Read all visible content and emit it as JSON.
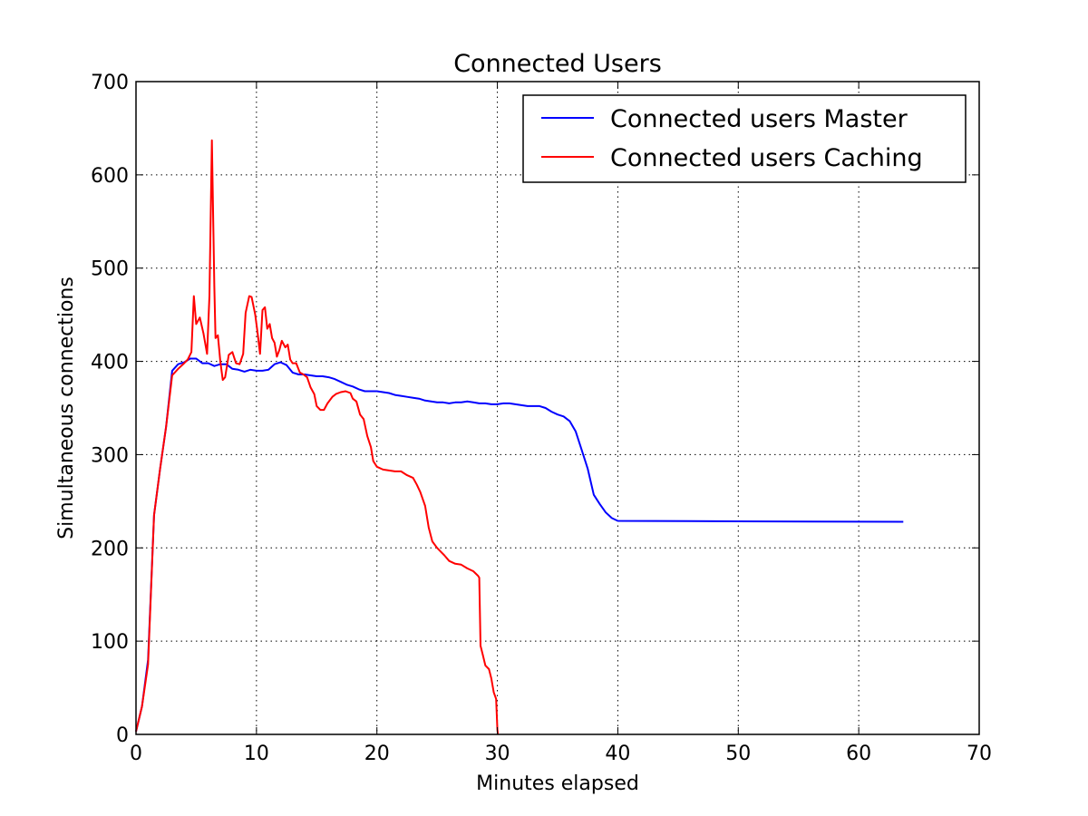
{
  "chart_data": {
    "type": "line",
    "title": "Connected Users",
    "xlabel": "Minutes elapsed",
    "ylabel": "Simultaneous connections",
    "xlim": [
      0,
      70
    ],
    "ylim": [
      0,
      700
    ],
    "xticks": [
      0,
      10,
      20,
      30,
      40,
      50,
      60,
      70
    ],
    "yticks": [
      0,
      100,
      200,
      300,
      400,
      500,
      600,
      700
    ],
    "xtick_labels": [
      "0",
      "10",
      "20",
      "30",
      "40",
      "50",
      "60",
      "70"
    ],
    "ytick_labels": [
      "0",
      "100",
      "200",
      "300",
      "400",
      "500",
      "600",
      "700"
    ],
    "grid": true,
    "grid_style": "dotted",
    "legend_position": "upper right",
    "series": [
      {
        "name": "Connected users Master",
        "color": "#0000ff",
        "points": [
          [
            0,
            3
          ],
          [
            0.5,
            30
          ],
          [
            1,
            80
          ],
          [
            1.5,
            235
          ],
          [
            2,
            285
          ],
          [
            2.5,
            330
          ],
          [
            3,
            390
          ],
          [
            3.5,
            397
          ],
          [
            4,
            399
          ],
          [
            4.5,
            403
          ],
          [
            5,
            403
          ],
          [
            5.5,
            398
          ],
          [
            6,
            398
          ],
          [
            6.5,
            395
          ],
          [
            7,
            397
          ],
          [
            7.5,
            397
          ],
          [
            8,
            392
          ],
          [
            8.5,
            391
          ],
          [
            9,
            389
          ],
          [
            9.5,
            391
          ],
          [
            10,
            390
          ],
          [
            10.5,
            390
          ],
          [
            11,
            391
          ],
          [
            11.5,
            397
          ],
          [
            12,
            399
          ],
          [
            12.5,
            396
          ],
          [
            13,
            388
          ],
          [
            13.5,
            386
          ],
          [
            14,
            386
          ],
          [
            14.5,
            385
          ],
          [
            15,
            384
          ],
          [
            15.5,
            384
          ],
          [
            16,
            383
          ],
          [
            16.5,
            381
          ],
          [
            17,
            378
          ],
          [
            17.5,
            375
          ],
          [
            18,
            373
          ],
          [
            18.5,
            370
          ],
          [
            19,
            368
          ],
          [
            19.5,
            368
          ],
          [
            20,
            368
          ],
          [
            20.5,
            367
          ],
          [
            21,
            366
          ],
          [
            21.5,
            364
          ],
          [
            22,
            363
          ],
          [
            22.5,
            362
          ],
          [
            23,
            361
          ],
          [
            23.5,
            360
          ],
          [
            24,
            358
          ],
          [
            24.5,
            357
          ],
          [
            25,
            356
          ],
          [
            25.5,
            356
          ],
          [
            26,
            355
          ],
          [
            26.5,
            356
          ],
          [
            27,
            356
          ],
          [
            27.5,
            357
          ],
          [
            28,
            356
          ],
          [
            28.5,
            355
          ],
          [
            29,
            355
          ],
          [
            29.5,
            354
          ],
          [
            30,
            354
          ],
          [
            30.5,
            355
          ],
          [
            31,
            355
          ],
          [
            31.5,
            354
          ],
          [
            32,
            353
          ],
          [
            32.5,
            352
          ],
          [
            33,
            352
          ],
          [
            33.5,
            352
          ],
          [
            34,
            350
          ],
          [
            34.5,
            346
          ],
          [
            35,
            343
          ],
          [
            35.5,
            341
          ],
          [
            36,
            336
          ],
          [
            36.5,
            325
          ],
          [
            37,
            305
          ],
          [
            37.5,
            285
          ],
          [
            38,
            257
          ],
          [
            38.5,
            247
          ],
          [
            39,
            238
          ],
          [
            39.5,
            232
          ],
          [
            40,
            229
          ],
          [
            50,
            228.5
          ],
          [
            63.7,
            228
          ]
        ]
      },
      {
        "name": "Connected users Caching",
        "color": "#ff0000",
        "points": [
          [
            0,
            3
          ],
          [
            0.5,
            30
          ],
          [
            1,
            75
          ],
          [
            1.5,
            235
          ],
          [
            2,
            285
          ],
          [
            2.5,
            330
          ],
          [
            3,
            385
          ],
          [
            3.5,
            392
          ],
          [
            4,
            398
          ],
          [
            4.3,
            402
          ],
          [
            4.6,
            410
          ],
          [
            4.8,
            470
          ],
          [
            5,
            440
          ],
          [
            5.3,
            447
          ],
          [
            5.6,
            430
          ],
          [
            5.9,
            408
          ],
          [
            6.1,
            470
          ],
          [
            6.3,
            637
          ],
          [
            6.5,
            480
          ],
          [
            6.6,
            425
          ],
          [
            6.8,
            428
          ],
          [
            7.0,
            400
          ],
          [
            7.2,
            380
          ],
          [
            7.4,
            383
          ],
          [
            7.7,
            407
          ],
          [
            8,
            410
          ],
          [
            8.3,
            398
          ],
          [
            8.6,
            397
          ],
          [
            8.9,
            408
          ],
          [
            9.1,
            452
          ],
          [
            9.4,
            470
          ],
          [
            9.6,
            469
          ],
          [
            9.9,
            450
          ],
          [
            10.1,
            430
          ],
          [
            10.3,
            408
          ],
          [
            10.5,
            455
          ],
          [
            10.7,
            458
          ],
          [
            10.9,
            435
          ],
          [
            11.1,
            440
          ],
          [
            11.3,
            425
          ],
          [
            11.5,
            420
          ],
          [
            11.7,
            405
          ],
          [
            11.9,
            412
          ],
          [
            12.1,
            422
          ],
          [
            12.4,
            415
          ],
          [
            12.6,
            418
          ],
          [
            12.8,
            402
          ],
          [
            13.0,
            398
          ],
          [
            13.3,
            398
          ],
          [
            13.6,
            388
          ],
          [
            13.9,
            386
          ],
          [
            14.2,
            383
          ],
          [
            14.5,
            372
          ],
          [
            14.8,
            365
          ],
          [
            15,
            352
          ],
          [
            15.3,
            348
          ],
          [
            15.6,
            348
          ],
          [
            15.9,
            355
          ],
          [
            16.3,
            362
          ],
          [
            16.6,
            365
          ],
          [
            17,
            367
          ],
          [
            17.4,
            368
          ],
          [
            17.8,
            366
          ],
          [
            18.0,
            360
          ],
          [
            18.3,
            357
          ],
          [
            18.6,
            343
          ],
          [
            18.9,
            338
          ],
          [
            19.2,
            320
          ],
          [
            19.5,
            308
          ],
          [
            19.7,
            293
          ],
          [
            20,
            287
          ],
          [
            20.5,
            284
          ],
          [
            21,
            283
          ],
          [
            21.5,
            282
          ],
          [
            22,
            282
          ],
          [
            22.5,
            278
          ],
          [
            23,
            275
          ],
          [
            23.3,
            268
          ],
          [
            23.6,
            260
          ],
          [
            24,
            245
          ],
          [
            24.3,
            222
          ],
          [
            24.6,
            207
          ],
          [
            25,
            200
          ],
          [
            25.3,
            196
          ],
          [
            25.6,
            192
          ],
          [
            26,
            186
          ],
          [
            26.5,
            183
          ],
          [
            27,
            182
          ],
          [
            27.5,
            178
          ],
          [
            28,
            175
          ],
          [
            28.4,
            170
          ],
          [
            28.5,
            168
          ],
          [
            28.6,
            95
          ],
          [
            28.8,
            85
          ],
          [
            29,
            74
          ],
          [
            29.3,
            70
          ],
          [
            29.5,
            60
          ],
          [
            29.7,
            45
          ],
          [
            29.9,
            38
          ],
          [
            30.0,
            5
          ],
          [
            30.05,
            0
          ]
        ]
      }
    ]
  }
}
